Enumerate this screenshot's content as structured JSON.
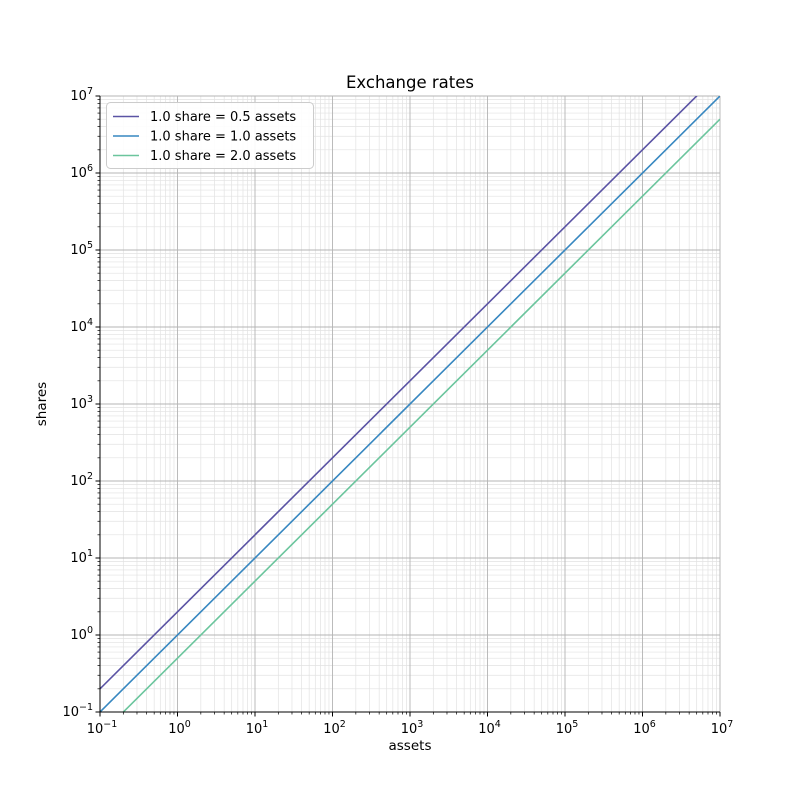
{
  "figure": {
    "background": "#ffffff"
  },
  "chart_data": {
    "type": "line",
    "title": "Exchange rates",
    "xlabel": "assets",
    "ylabel": "shares",
    "xscale": "log",
    "yscale": "log",
    "xlim": [
      0.1,
      10000000
    ],
    "ylim": [
      0.1,
      10000000
    ],
    "x_tick_exponents": [
      -1,
      0,
      1,
      2,
      3,
      4,
      5,
      6,
      7
    ],
    "y_tick_exponents": [
      -1,
      0,
      1,
      2,
      3,
      4,
      5,
      6,
      7
    ],
    "tick_label_base": "10",
    "grid": "both",
    "legend_position": "upper left",
    "series": [
      {
        "name": "1.0 share = 0.5 assets",
        "shares_per_asset": 2.0,
        "color": "#5a53a4",
        "x": [
          0.1,
          5000000
        ],
        "y": [
          0.2,
          10000000
        ]
      },
      {
        "name": "1.0 share = 1.0 assets",
        "shares_per_asset": 1.0,
        "color": "#3787c0",
        "x": [
          0.1,
          10000000
        ],
        "y": [
          0.1,
          10000000
        ]
      },
      {
        "name": "1.0 share = 2.0 assets",
        "shares_per_asset": 0.5,
        "color": "#6bc59d",
        "x": [
          0.2,
          10000000
        ],
        "y": [
          0.1,
          5000000
        ]
      }
    ]
  },
  "style": {
    "major_grid_color": "#b4b4b4",
    "minor_grid_color": "#e2e2e2",
    "spine_color": "#000000",
    "tick_color": "#000000",
    "legend_border_color": "#cccccc",
    "legend_background": "#ffffff",
    "text_color": "#000000"
  }
}
